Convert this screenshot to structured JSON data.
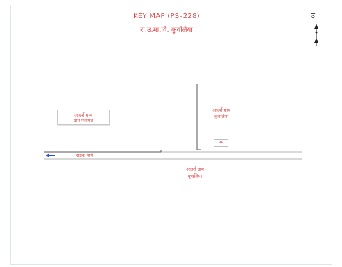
{
  "map": {
    "title": "KEY MAP (PS–228)",
    "subtitle": "रा.उ.मा.वि. कुवलिया",
    "north_label": "उ",
    "labels": {
      "left_box_line1": "आदर्श ग्राम",
      "left_box_line2": "ग्राम पंचायत",
      "right_upper_line1": "आदर्श ग्राम",
      "right_upper_line2": "कुवलिया",
      "ps_marker": "PS",
      "road_label": "सड़क मार्ग",
      "bottom_line1": "आदर्श ग्राम",
      "bottom_line2": "कुवलिया"
    },
    "colors": {
      "text": "#d94b4b",
      "road": "#555555",
      "arrow": "#2a4fd6",
      "frame": "#d9e6ea"
    },
    "icons": [
      "north-arrow-icon",
      "direction-arrow-icon"
    ]
  }
}
